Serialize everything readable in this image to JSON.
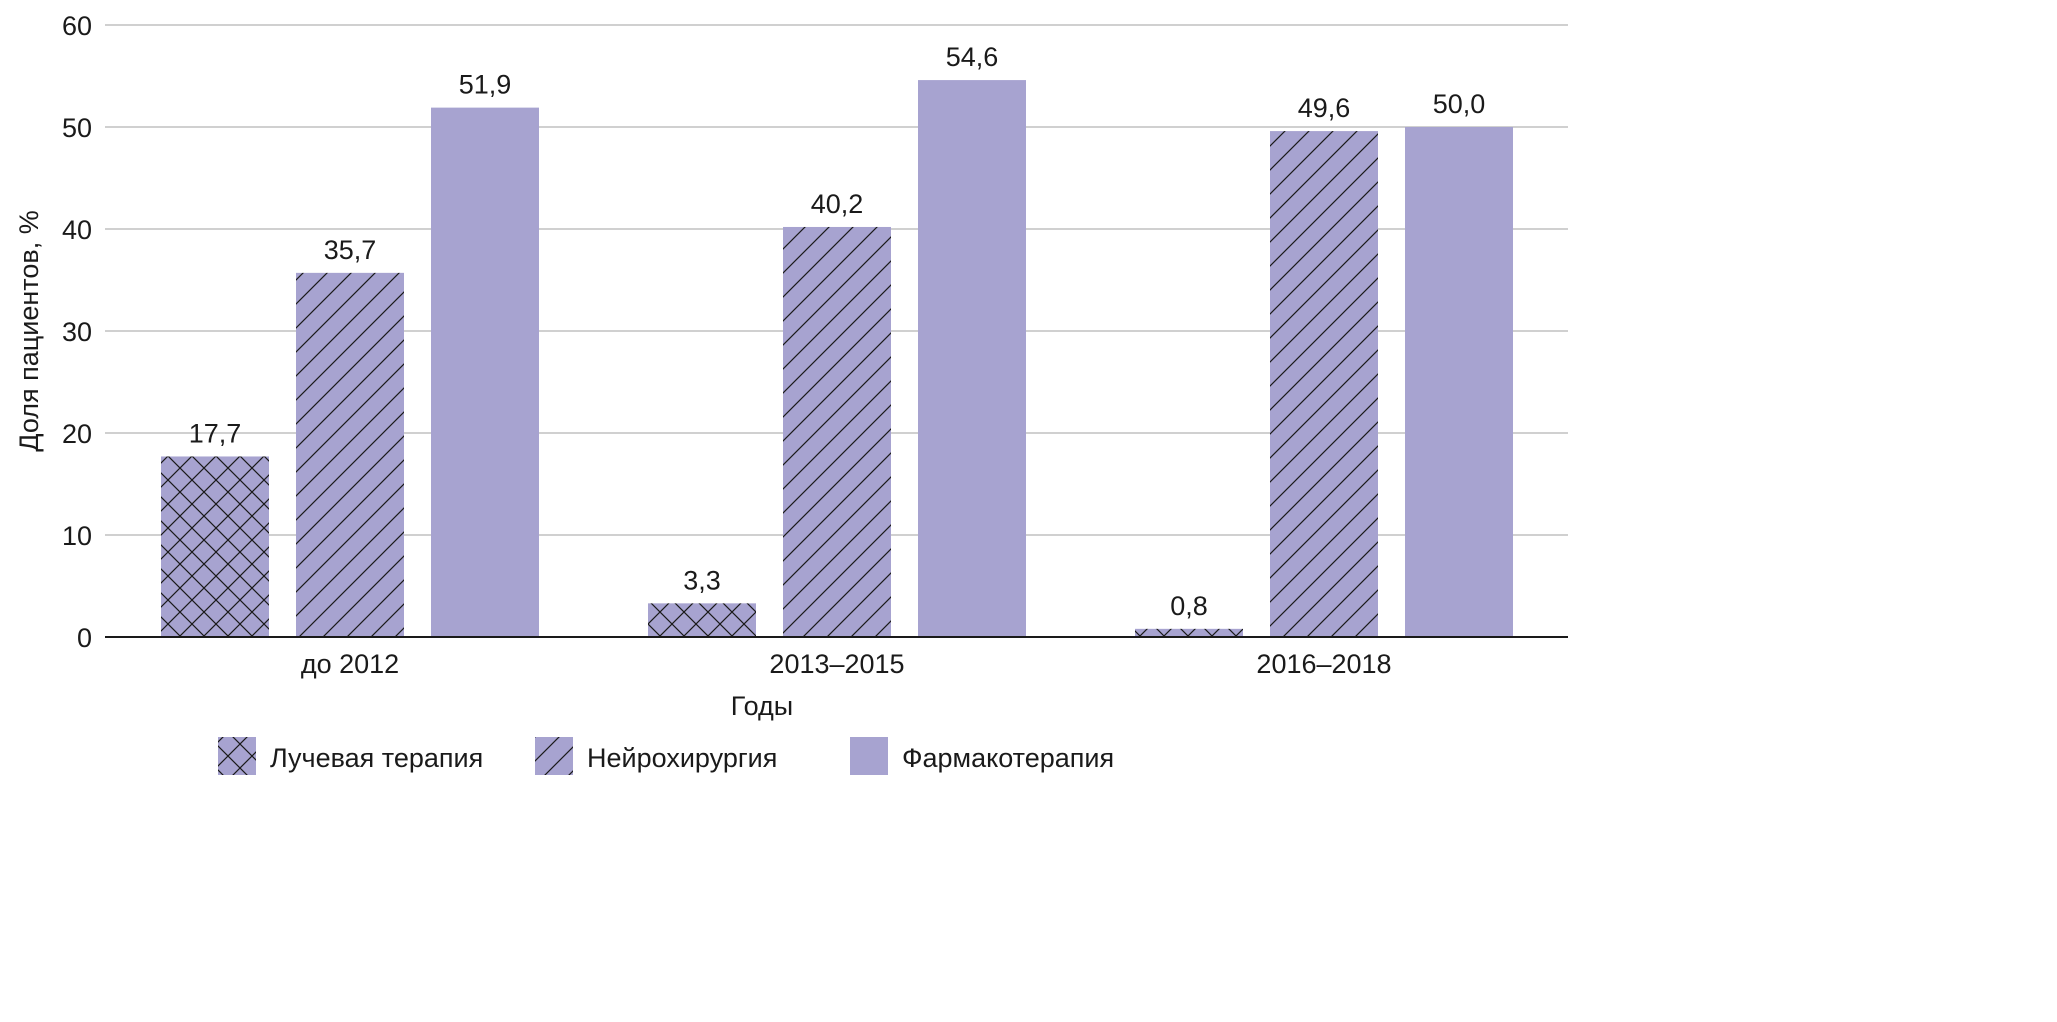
{
  "chart_data": {
    "type": "bar",
    "title": "",
    "xlabel": "Годы",
    "ylabel": "Доля пациентов, %",
    "ylim": [
      0,
      60
    ],
    "yticks": [
      0,
      10,
      20,
      30,
      40,
      50,
      60
    ],
    "grid": true,
    "legend_position": "bottom",
    "categories": [
      "до 2012",
      "2013–2015",
      "2016–2018"
    ],
    "series": [
      {
        "name": "Лучевая терапия",
        "values": [
          17.7,
          3.3,
          0.8
        ],
        "labels": [
          "17,7",
          "3,3",
          "0,8"
        ],
        "pattern": "crosshatch",
        "color": "#a7a3d0"
      },
      {
        "name": "Нейрохирургия",
        "values": [
          35.7,
          40.2,
          49.6
        ],
        "labels": [
          "35,7",
          "40,2",
          "49,6"
        ],
        "pattern": "diagonal",
        "color": "#a7a3d0"
      },
      {
        "name": "Фармакотерапия",
        "values": [
          51.9,
          54.6,
          50.0
        ],
        "labels": [
          "51,9",
          "54,6",
          "50,0"
        ],
        "pattern": "solid",
        "color": "#a7a3d0"
      }
    ],
    "colors": {
      "bar_fill": "#a7a3d0",
      "hatch": "#1a1a1a",
      "grid": "#b3b3b3",
      "axis": "#1a1a1a"
    }
  }
}
